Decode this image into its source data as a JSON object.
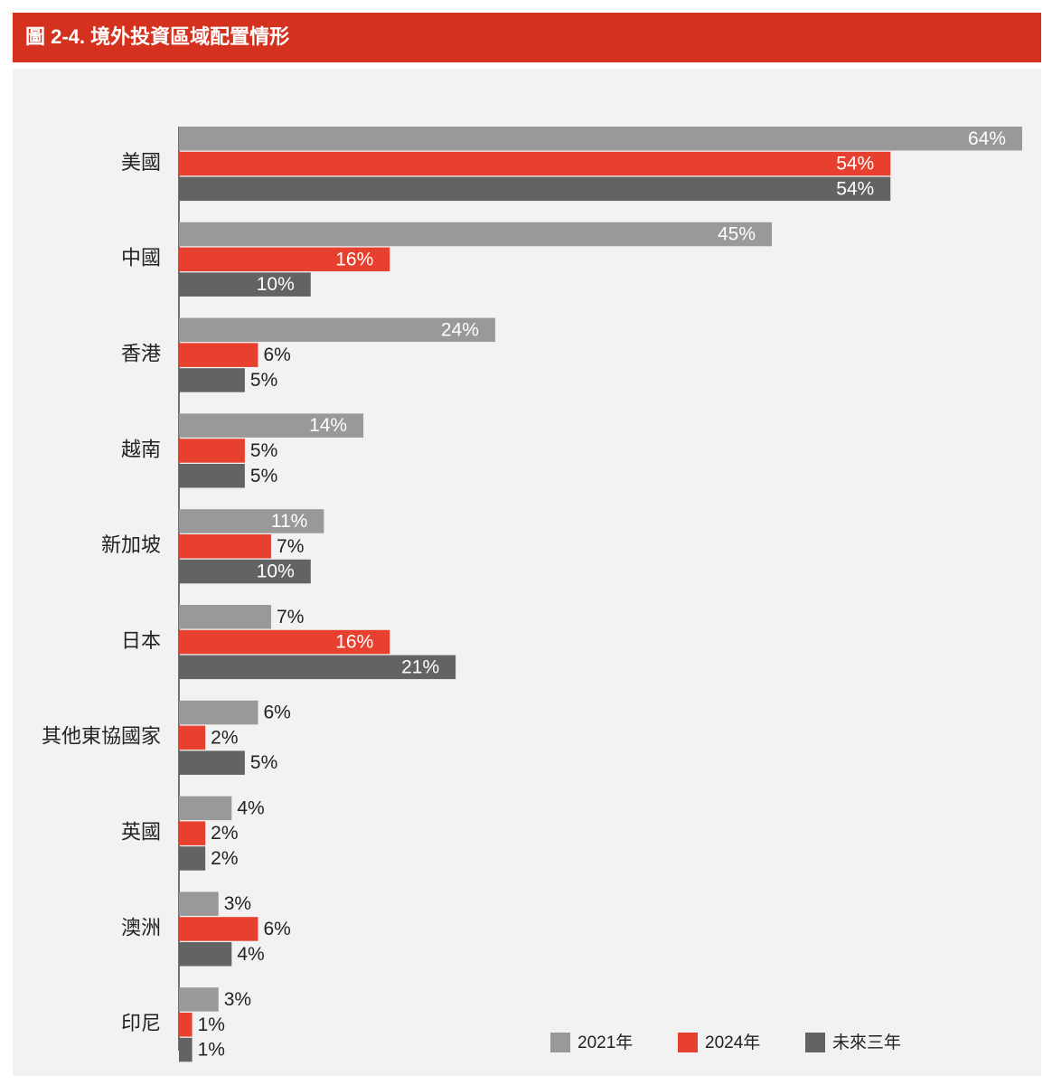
{
  "chart_data": {
    "type": "hbar",
    "title": "圖 2-4. 境外投資區域配置情形",
    "categories": [
      "美國",
      "中國",
      "香港",
      "越南",
      "新加坡",
      "日本",
      "其他東協國家",
      "英國",
      "澳洲",
      "印尼"
    ],
    "series": [
      {
        "name": "2021年",
        "color": "#999999",
        "values": [
          64,
          45,
          24,
          14,
          11,
          7,
          6,
          4,
          3,
          3
        ],
        "value_labels": [
          "64%",
          "45%",
          "24%",
          "14%",
          "11%",
          "7%",
          "6%",
          "4%",
          "3%",
          "3%"
        ]
      },
      {
        "name": "2024年",
        "color": "#e8402f",
        "values": [
          54,
          16,
          6,
          5,
          7,
          16,
          2,
          2,
          6,
          1
        ],
        "value_labels": [
          "54%",
          "16%",
          "6%",
          "5%",
          "7%",
          "16%",
          "2%",
          "2%",
          "6%",
          "1%"
        ]
      },
      {
        "name": "未來三年",
        "color": "#636363",
        "values": [
          54,
          10,
          5,
          5,
          10,
          21,
          5,
          2,
          4,
          1
        ],
        "value_labels": [
          "54%",
          "10%",
          "5%",
          "5%",
          "10%",
          "21%",
          "5%",
          "2%",
          "4%",
          "1%"
        ]
      }
    ]
  }
}
